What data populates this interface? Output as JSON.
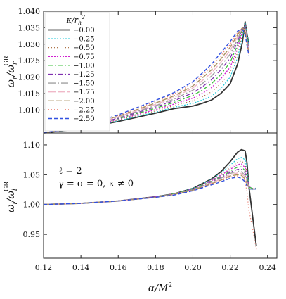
{
  "chart_data": [
    {
      "type": "line",
      "panel": "top",
      "ylabel": "ω_r/ω_r^GR",
      "ylim": [
        1.003,
        1.04
      ],
      "xlim": [
        0.12,
        0.245
      ],
      "yticks": [
        "1.010",
        "1.015",
        "1.020",
        "1.025",
        "1.030",
        "1.035",
        "1.040"
      ],
      "legend": {
        "title": "κ/r_h²",
        "placement": "top-left",
        "entries": [
          "−0.00",
          "−0.25",
          "−0.50",
          "−0.75",
          "−1.00",
          "−1.25",
          "−1.50",
          "−1.75",
          "−2.00",
          "−2.25",
          "−2.50"
        ]
      },
      "series": [
        {
          "name": "−0.00",
          "color": "#333333",
          "dash": "",
          "width": 1.8,
          "x": [
            0.12,
            0.14,
            0.16,
            0.18,
            0.19,
            0.2,
            0.205,
            0.21,
            0.215,
            0.22,
            0.224,
            0.2265,
            0.228,
            0.229,
            0.23
          ],
          "y": [
            1.003,
            1.0043,
            1.0065,
            1.009,
            1.0104,
            1.0112,
            1.012,
            1.013,
            1.015,
            1.018,
            1.024,
            1.0305,
            1.0368,
            1.033,
            1.03
          ]
        },
        {
          "name": "−0.25",
          "color": "#22c8d8",
          "dash": "2,2",
          "width": 1.2,
          "x": [
            0.12,
            0.14,
            0.16,
            0.18,
            0.19,
            0.2,
            0.205,
            0.21,
            0.215,
            0.22,
            0.224,
            0.2265,
            0.228,
            0.229,
            0.23
          ],
          "y": [
            1.003,
            1.0044,
            1.0067,
            1.0093,
            1.0108,
            1.012,
            1.013,
            1.0142,
            1.0165,
            1.02,
            1.026,
            1.032,
            1.0365,
            1.033,
            1.0295
          ]
        },
        {
          "name": "−0.50",
          "color": "#a06030",
          "dash": "1,3",
          "width": 1.2,
          "x": [
            0.12,
            0.14,
            0.16,
            0.18,
            0.19,
            0.2,
            0.205,
            0.21,
            0.215,
            0.22,
            0.224,
            0.2265,
            0.228,
            0.229,
            0.23
          ],
          "y": [
            1.003,
            1.0045,
            1.0069,
            1.0097,
            1.0113,
            1.0128,
            1.014,
            1.0155,
            1.018,
            1.0215,
            1.0275,
            1.033,
            1.0362,
            1.0325,
            1.029
          ]
        },
        {
          "name": "−0.75",
          "color": "#d020d0",
          "dash": "2,2",
          "width": 1.3,
          "x": [
            0.12,
            0.14,
            0.16,
            0.18,
            0.19,
            0.2,
            0.205,
            0.21,
            0.215,
            0.22,
            0.224,
            0.2265,
            0.228,
            0.229,
            0.23
          ],
          "y": [
            1.003,
            1.0046,
            1.0071,
            1.0101,
            1.0118,
            1.0136,
            1.015,
            1.0168,
            1.0195,
            1.023,
            1.0288,
            1.0338,
            1.0358,
            1.032,
            1.0285
          ]
        },
        {
          "name": "−1.00",
          "color": "#40c040",
          "dash": "6,3,2,3",
          "width": 1.3,
          "x": [
            0.12,
            0.14,
            0.16,
            0.18,
            0.19,
            0.2,
            0.205,
            0.21,
            0.215,
            0.22,
            0.224,
            0.2265,
            0.228,
            0.229,
            0.23
          ],
          "y": [
            1.003,
            1.0046,
            1.0073,
            1.0105,
            1.0123,
            1.0144,
            1.016,
            1.018,
            1.0208,
            1.0245,
            1.0298,
            1.0345,
            1.0355,
            1.0318,
            1.0282
          ]
        },
        {
          "name": "−1.25",
          "color": "#8030b0",
          "dash": "6,3,2,3",
          "width": 1.3,
          "x": [
            0.12,
            0.14,
            0.16,
            0.18,
            0.19,
            0.2,
            0.205,
            0.21,
            0.215,
            0.22,
            0.224,
            0.2265,
            0.228,
            0.229,
            0.23
          ],
          "y": [
            1.003,
            1.0047,
            1.0075,
            1.0109,
            1.0128,
            1.0152,
            1.017,
            1.0192,
            1.0222,
            1.0258,
            1.0308,
            1.0348,
            1.0352,
            1.0315,
            1.028
          ]
        },
        {
          "name": "−1.50",
          "color": "#a0a0a0",
          "dash": "10,3,2,3",
          "width": 1.4,
          "x": [
            0.12,
            0.14,
            0.16,
            0.18,
            0.19,
            0.2,
            0.205,
            0.21,
            0.215,
            0.22,
            0.224,
            0.2265,
            0.228,
            0.229,
            0.23
          ],
          "y": [
            1.003,
            1.0047,
            1.0077,
            1.0113,
            1.0133,
            1.016,
            1.018,
            1.0203,
            1.0234,
            1.027,
            1.0316,
            1.035,
            1.0348,
            1.0312,
            1.0278
          ]
        },
        {
          "name": "−1.75",
          "color": "#f0b8c8",
          "dash": "10,3",
          "width": 1.4,
          "x": [
            0.12,
            0.14,
            0.16,
            0.18,
            0.19,
            0.2,
            0.205,
            0.21,
            0.215,
            0.22,
            0.224,
            0.2265,
            0.228,
            0.229,
            0.23
          ],
          "y": [
            1.003,
            1.0048,
            1.0079,
            1.0117,
            1.0138,
            1.0167,
            1.0189,
            1.0213,
            1.0245,
            1.0281,
            1.0323,
            1.035,
            1.0345,
            1.0308,
            1.0275
          ]
        },
        {
          "name": "−2.00",
          "color": "#a89060",
          "dash": "8,3",
          "width": 1.4,
          "x": [
            0.12,
            0.14,
            0.16,
            0.18,
            0.19,
            0.2,
            0.205,
            0.21,
            0.215,
            0.22,
            0.224,
            0.2265,
            0.228,
            0.229,
            0.23
          ],
          "y": [
            1.003,
            1.0048,
            1.0081,
            1.0121,
            1.0143,
            1.0173,
            1.0197,
            1.0222,
            1.0255,
            1.0291,
            1.0329,
            1.035,
            1.034,
            1.0305,
            1.0272
          ]
        },
        {
          "name": "−2.25",
          "color": "#e87060",
          "dash": "1,3",
          "width": 1.3,
          "x": [
            0.12,
            0.14,
            0.16,
            0.18,
            0.19,
            0.2,
            0.205,
            0.21,
            0.215,
            0.22,
            0.224,
            0.2265,
            0.228,
            0.229,
            0.23
          ],
          "y": [
            1.003,
            1.0049,
            1.0083,
            1.0125,
            1.0148,
            1.018,
            1.0205,
            1.0231,
            1.0265,
            1.03,
            1.0335,
            1.0348,
            1.0335,
            1.03,
            1.0268
          ]
        },
        {
          "name": "−2.50",
          "color": "#3050e0",
          "dash": "5,3",
          "width": 1.4,
          "x": [
            0.12,
            0.14,
            0.16,
            0.18,
            0.19,
            0.2,
            0.205,
            0.21,
            0.215,
            0.22,
            0.224,
            0.2265,
            0.228,
            0.229,
            0.23
          ],
          "y": [
            1.003,
            1.0049,
            1.0085,
            1.0129,
            1.0153,
            1.0186,
            1.0212,
            1.0239,
            1.0274,
            1.0308,
            1.034,
            1.0345,
            1.033,
            1.0296,
            1.0265
          ]
        }
      ]
    },
    {
      "type": "line",
      "panel": "bottom",
      "ylabel": "ω_i/ω_i^GR",
      "xlabel": "α/M²",
      "xlim": [
        0.12,
        0.245
      ],
      "ylim": [
        0.91,
        1.12
      ],
      "xticks": [
        "0.12",
        "0.14",
        "0.16",
        "0.18",
        "0.20",
        "0.22",
        "0.24"
      ],
      "yticks": [
        "0.95",
        "1.00",
        "1.05",
        "1.10"
      ],
      "annotations": [
        "ℓ = 2",
        "γ = σ = 0,  κ ≠ 0"
      ],
      "series": [
        {
          "name": "−0.00",
          "color": "#333333",
          "dash": "",
          "width": 1.8,
          "x": [
            0.12,
            0.14,
            0.16,
            0.18,
            0.19,
            0.2,
            0.21,
            0.215,
            0.22,
            0.224,
            0.226,
            0.228,
            0.229,
            0.23,
            0.232,
            0.234
          ],
          "y": [
            1.0,
            1.002,
            1.006,
            1.013,
            1.018,
            1.027,
            1.043,
            1.055,
            1.072,
            1.088,
            1.092,
            1.09,
            1.07,
            1.03,
            0.98,
            0.93
          ]
        },
        {
          "name": "−0.25",
          "color": "#22c8d8",
          "dash": "2,2",
          "width": 1.2,
          "x": [
            0.12,
            0.14,
            0.16,
            0.18,
            0.19,
            0.2,
            0.21,
            0.215,
            0.22,
            0.224,
            0.226,
            0.228,
            0.229,
            0.23,
            0.232,
            0.234
          ],
          "y": [
            1.0,
            1.002,
            1.006,
            1.013,
            1.018,
            1.027,
            1.042,
            1.053,
            1.066,
            1.077,
            1.079,
            1.075,
            1.06,
            1.032,
            1.025,
            1.028
          ]
        },
        {
          "name": "−0.50",
          "color": "#a06030",
          "dash": "1,3",
          "width": 1.2,
          "x": [
            0.12,
            0.14,
            0.16,
            0.18,
            0.19,
            0.2,
            0.21,
            0.215,
            0.22,
            0.224,
            0.226,
            0.228,
            0.229,
            0.23,
            0.232,
            0.234
          ],
          "y": [
            1.0,
            1.002,
            1.006,
            1.013,
            1.018,
            1.026,
            1.041,
            1.051,
            1.062,
            1.071,
            1.073,
            1.068,
            1.055,
            1.03,
            1.026,
            1.027
          ]
        },
        {
          "name": "−0.75",
          "color": "#d020d0",
          "dash": "2,2",
          "width": 1.3,
          "x": [
            0.12,
            0.14,
            0.16,
            0.18,
            0.19,
            0.2,
            0.21,
            0.215,
            0.22,
            0.224,
            0.226,
            0.228,
            0.229,
            0.23,
            0.232,
            0.234
          ],
          "y": [
            1.0,
            1.002,
            1.006,
            1.013,
            1.018,
            1.026,
            1.04,
            1.049,
            1.059,
            1.067,
            1.068,
            1.062,
            1.05,
            1.03,
            1.027,
            1.026
          ]
        },
        {
          "name": "−1.00",
          "color": "#40c040",
          "dash": "6,3,2,3",
          "width": 1.3,
          "x": [
            0.12,
            0.14,
            0.16,
            0.18,
            0.19,
            0.2,
            0.21,
            0.215,
            0.22,
            0.224,
            0.226,
            0.228,
            0.229,
            0.23,
            0.232,
            0.234
          ],
          "y": [
            1.0,
            1.002,
            1.006,
            1.013,
            1.018,
            1.026,
            1.039,
            1.047,
            1.056,
            1.063,
            1.063,
            1.057,
            1.046,
            1.029,
            1.027,
            1.026
          ]
        },
        {
          "name": "−1.25",
          "color": "#8030b0",
          "dash": "6,3,2,3",
          "width": 1.3,
          "x": [
            0.12,
            0.14,
            0.16,
            0.18,
            0.19,
            0.2,
            0.21,
            0.215,
            0.22,
            0.224,
            0.226,
            0.228,
            0.229,
            0.23,
            0.232,
            0.234
          ],
          "y": [
            1.0,
            1.002,
            1.006,
            1.013,
            1.017,
            1.025,
            1.038,
            1.045,
            1.054,
            1.059,
            1.059,
            1.053,
            1.043,
            1.028,
            1.026,
            1.026
          ]
        },
        {
          "name": "−1.50",
          "color": "#a0a0a0",
          "dash": "10,3,2,3",
          "width": 1.4,
          "x": [
            0.12,
            0.14,
            0.16,
            0.18,
            0.19,
            0.2,
            0.21,
            0.215,
            0.22,
            0.224,
            0.226,
            0.228,
            0.229,
            0.23,
            0.232,
            0.234
          ],
          "y": [
            1.0,
            1.002,
            1.006,
            1.012,
            1.017,
            1.025,
            1.037,
            1.044,
            1.052,
            1.056,
            1.055,
            1.049,
            1.04,
            1.027,
            1.026,
            1.026
          ]
        },
        {
          "name": "−1.75",
          "color": "#f0b8c8",
          "dash": "10,3",
          "width": 1.4,
          "x": [
            0.12,
            0.14,
            0.16,
            0.18,
            0.19,
            0.2,
            0.21,
            0.215,
            0.22,
            0.224,
            0.226,
            0.228,
            0.229,
            0.23,
            0.232,
            0.234
          ],
          "y": [
            1.0,
            1.002,
            1.006,
            1.012,
            1.017,
            1.024,
            1.036,
            1.043,
            1.05,
            1.053,
            1.052,
            1.046,
            1.037,
            1.026,
            1.026,
            1.026
          ]
        },
        {
          "name": "−2.00",
          "color": "#a89060",
          "dash": "8,3",
          "width": 1.4,
          "x": [
            0.12,
            0.14,
            0.16,
            0.18,
            0.19,
            0.2,
            0.21,
            0.215,
            0.22,
            0.224,
            0.226,
            0.228,
            0.229,
            0.23,
            0.232,
            0.234
          ],
          "y": [
            1.0,
            1.002,
            1.006,
            1.012,
            1.017,
            1.024,
            1.035,
            1.041,
            1.048,
            1.05,
            1.049,
            1.043,
            1.035,
            1.026,
            1.026,
            1.026
          ]
        },
        {
          "name": "−2.25",
          "color": "#e87060",
          "dash": "1,3",
          "width": 1.3,
          "x": [
            0.12,
            0.14,
            0.16,
            0.18,
            0.19,
            0.2,
            0.21,
            0.215,
            0.22,
            0.224,
            0.226,
            0.228,
            0.229,
            0.23,
            0.232,
            0.234
          ],
          "y": [
            1.0,
            1.002,
            1.006,
            1.012,
            1.016,
            1.023,
            1.034,
            1.04,
            1.046,
            1.048,
            1.046,
            1.04,
            1.02,
            0.99,
            0.96,
            0.925
          ]
        },
        {
          "name": "−2.50",
          "color": "#3050e0",
          "dash": "5,3",
          "width": 1.4,
          "x": [
            0.12,
            0.14,
            0.16,
            0.18,
            0.19,
            0.2,
            0.21,
            0.215,
            0.22,
            0.224,
            0.226,
            0.228,
            0.229,
            0.23,
            0.232,
            0.234
          ],
          "y": [
            1.0,
            1.002,
            1.006,
            1.012,
            1.016,
            1.023,
            1.033,
            1.038,
            1.044,
            1.046,
            1.044,
            1.038,
            1.031,
            1.026,
            1.026,
            1.026
          ]
        }
      ]
    }
  ]
}
